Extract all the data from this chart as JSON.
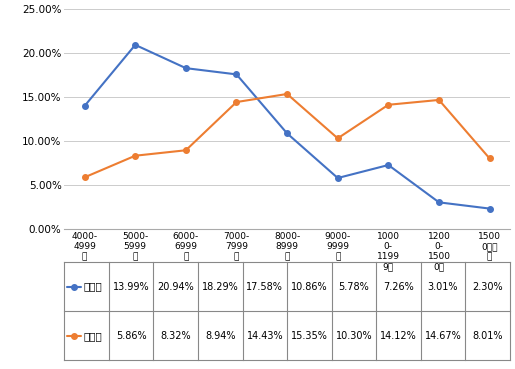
{
  "categories": [
    "4000-\n4999\n元",
    "5000-\n5999\n元",
    "6000-\n6999\n元",
    "7000-\n7999\n元",
    "8000-\n8999\n元",
    "9000-\n9999\n元",
    "1000\n0-\n1199\n9元",
    "1200\n0-\n1500\n0元",
    "1500\n0元以\n上"
  ],
  "benke": [
    13.99,
    20.94,
    18.29,
    17.58,
    10.86,
    5.78,
    7.26,
    3.01,
    2.3
  ],
  "yanjiusheng": [
    5.86,
    8.32,
    8.94,
    14.43,
    15.35,
    10.3,
    14.12,
    14.67,
    8.01
  ],
  "benke_color": "#4472C4",
  "yanjiusheng_color": "#ED7D31",
  "benke_label": "本科生",
  "yanjiusheng_label": "研究生",
  "benke_values_str": [
    "13.99%",
    "20.94%",
    "18.29%",
    "17.58%",
    "10.86%",
    "5.78%",
    "7.26%",
    "3.01%",
    "2.30%"
  ],
  "yanjiusheng_values_str": [
    "5.86%",
    "8.32%",
    "8.94%",
    "14.43%",
    "15.35%",
    "10.30%",
    "14.12%",
    "14.67%",
    "8.01%"
  ],
  "ylim_max": 25,
  "yticks": [
    0,
    5,
    10,
    15,
    20,
    25
  ],
  "ytick_labels": [
    "0.00%",
    "5.00%",
    "10.00%",
    "15.00%",
    "20.00%",
    "25.00%"
  ]
}
